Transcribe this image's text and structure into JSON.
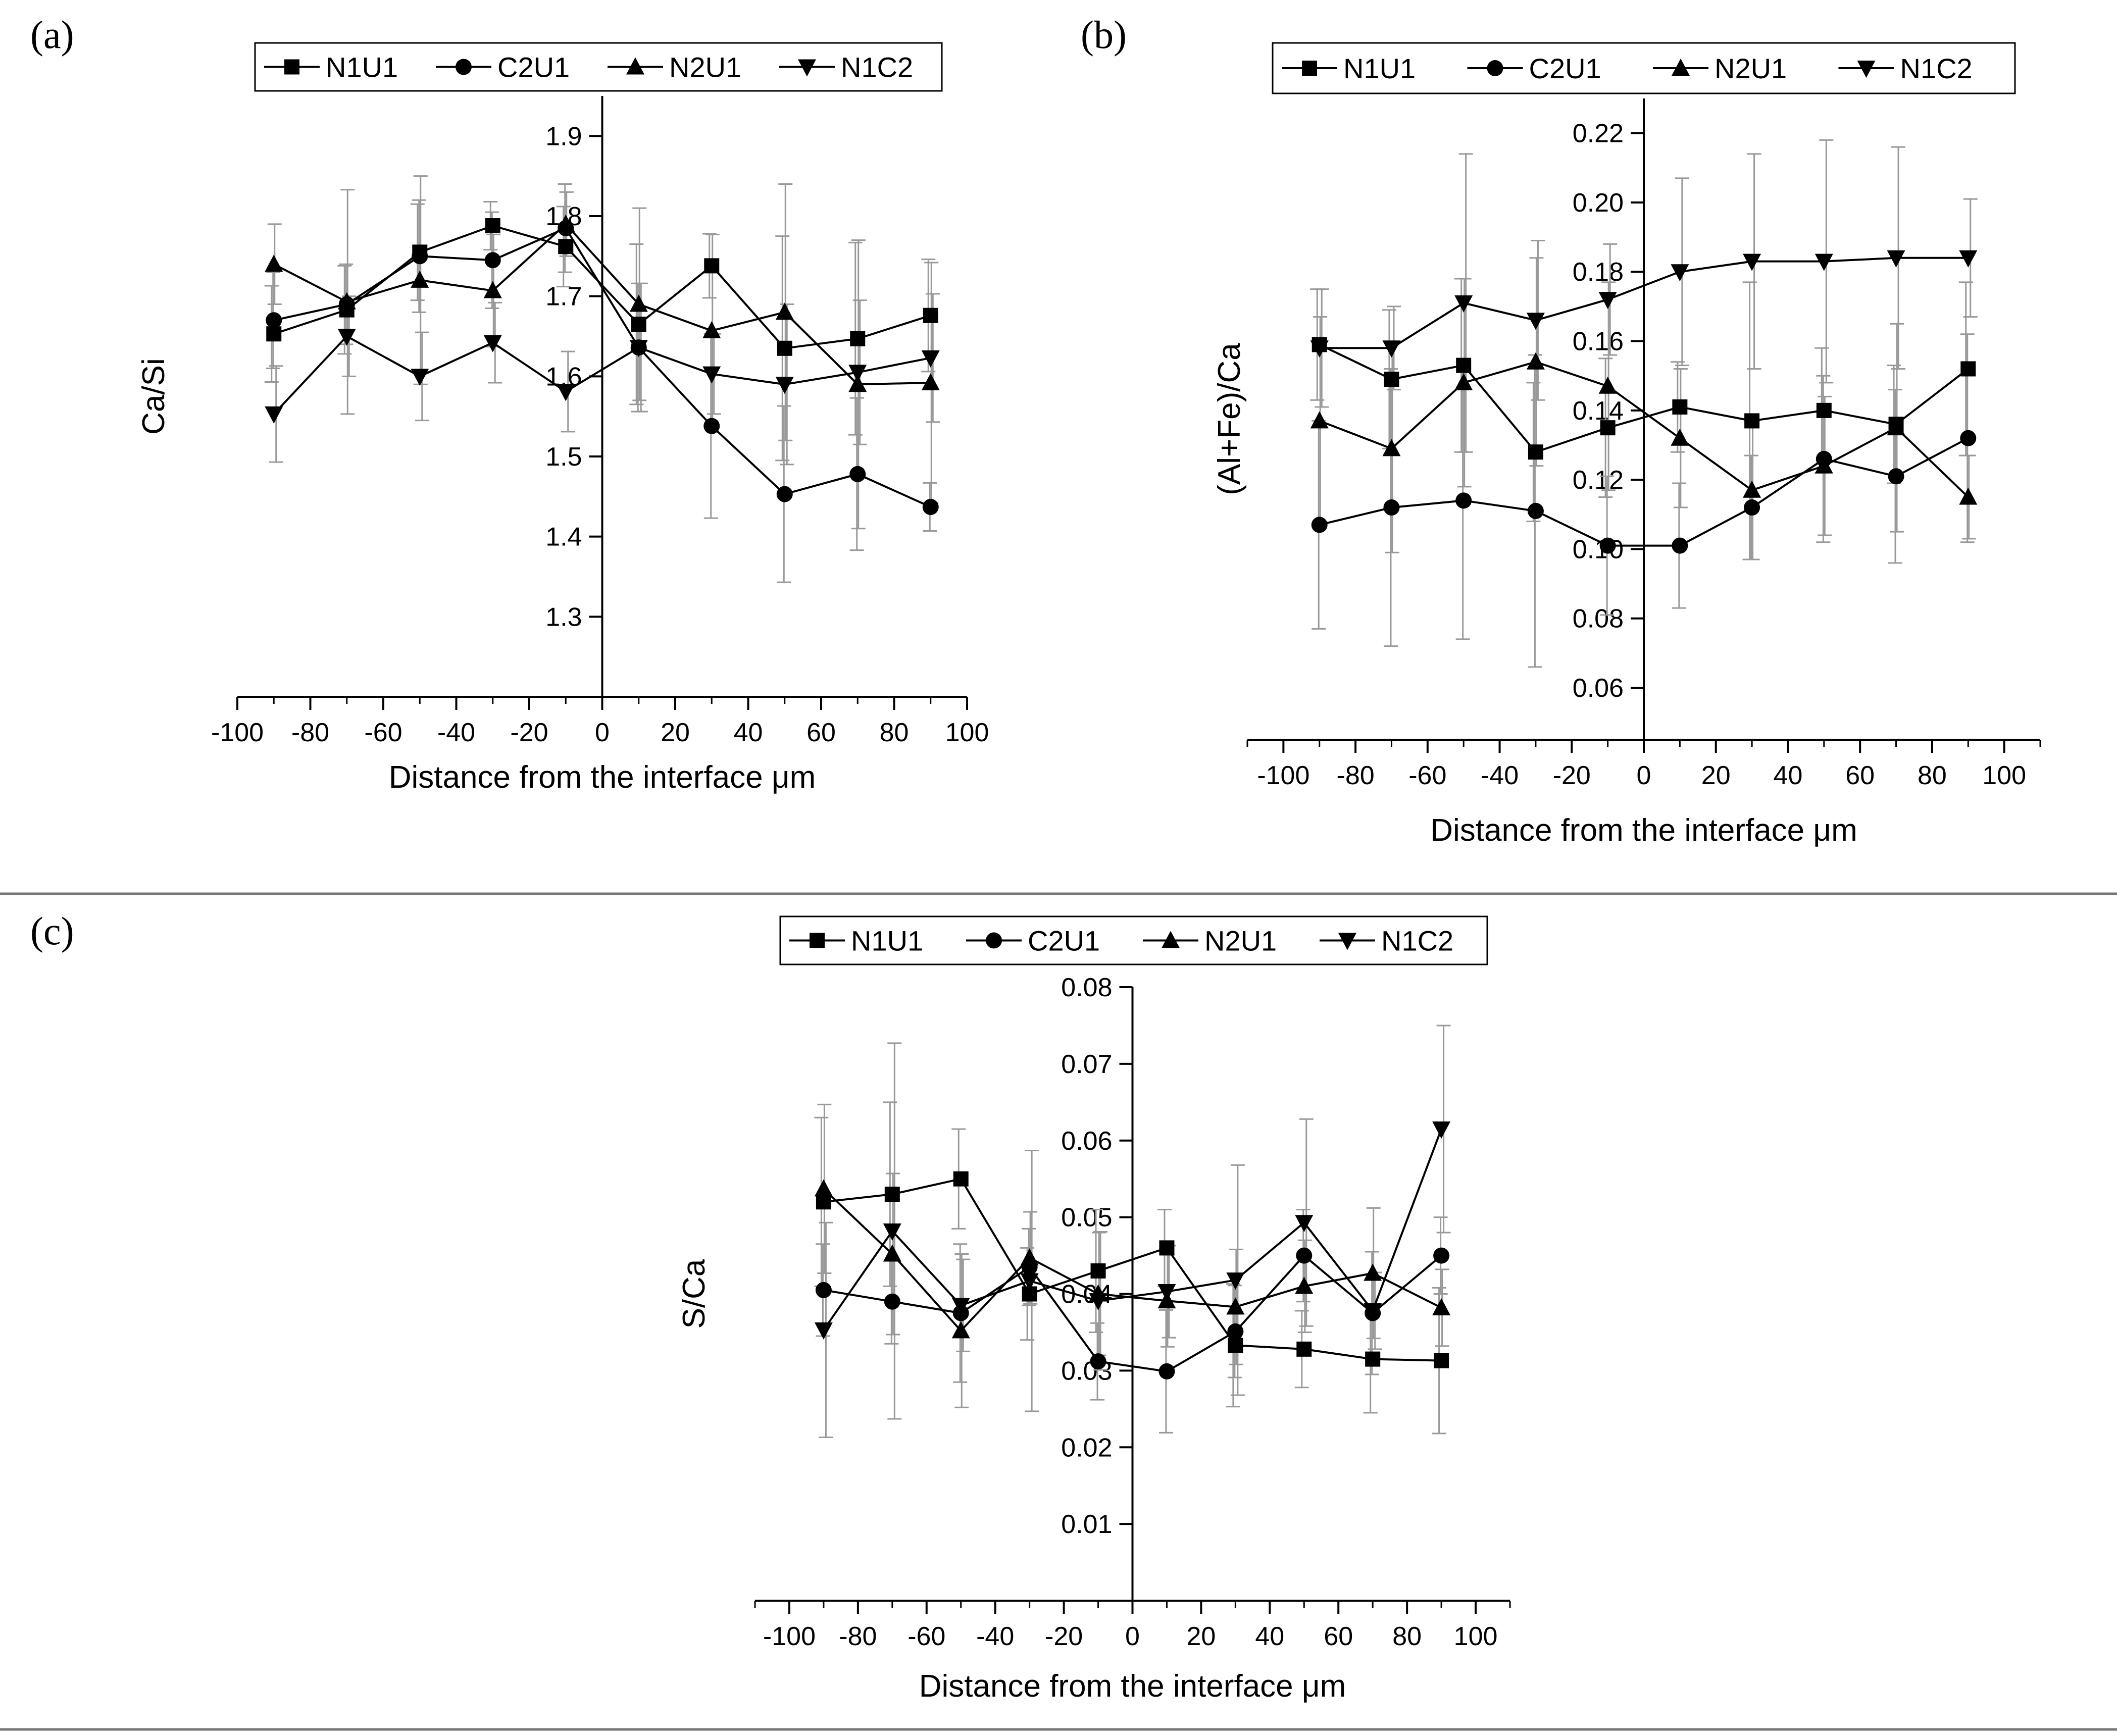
{
  "figure": {
    "separators": 2
  },
  "chart_data": [
    {
      "type": "line",
      "panel_label": "(a)",
      "title": "",
      "xlabel": "Distance from the interface μm",
      "ylabel": "Ca/Si",
      "xlim": [
        -100,
        100
      ],
      "ylim": [
        1.2,
        1.95
      ],
      "xticks": [
        -100,
        -80,
        -60,
        -40,
        -20,
        0,
        20,
        40,
        60,
        80,
        100
      ],
      "yticks": [
        1.3,
        1.4,
        1.5,
        1.6,
        1.7,
        1.8,
        1.9
      ],
      "legend_position": "top",
      "x": [
        -90,
        -70,
        -50,
        -30,
        -10,
        10,
        30,
        50,
        70,
        90
      ],
      "series": [
        {
          "name": "N1U1",
          "marker": "square",
          "values": [
            1.653,
            1.683,
            1.755,
            1.788,
            1.762,
            1.665,
            1.738,
            1.635,
            1.647,
            1.676
          ],
          "errors": [
            0.06,
            0.055,
            0.06,
            0.03,
            0.05,
            0.1,
            0.04,
            0.14,
            0.12,
            0.07
          ]
        },
        {
          "name": "C2U1",
          "marker": "circle",
          "values": [
            1.67,
            1.69,
            1.75,
            1.745,
            1.785,
            1.636,
            1.538,
            1.453,
            1.478,
            1.437
          ],
          "errors": [
            0.06,
            0.05,
            0.07,
            0.06,
            0.055,
            0.08,
            0.115,
            0.11,
            0.095,
            0.03
          ]
        },
        {
          "name": "N2U1",
          "marker": "triangle-up",
          "values": [
            1.74,
            1.693,
            1.72,
            1.707,
            1.79,
            1.69,
            1.657,
            1.68,
            1.59,
            1.592
          ],
          "errors": [
            0.05,
            0.14,
            0.13,
            0.07,
            0.04,
            0.12,
            0.12,
            0.16,
            0.18,
            0.15
          ]
        },
        {
          "name": "N1C2",
          "marker": "triangle-down",
          "values": [
            1.553,
            1.65,
            1.6,
            1.642,
            1.581,
            1.636,
            1.603,
            1.59,
            1.605,
            1.623
          ],
          "errors": [
            0.06,
            0.05,
            0.055,
            0.05,
            0.05,
            0.08,
            0.05,
            0.1,
            0.09,
            0.08
          ]
        }
      ]
    },
    {
      "type": "line",
      "panel_label": "(b)",
      "title": "",
      "xlabel": "Distance from the interface μm",
      "ylabel": "(Al+Fe)/Ca",
      "xlim": [
        -110,
        110
      ],
      "ylim": [
        0.045,
        0.23
      ],
      "xticks": [
        -100,
        -80,
        -60,
        -40,
        -20,
        0,
        20,
        40,
        60,
        80,
        100
      ],
      "yticks": [
        0.06,
        0.08,
        0.1,
        0.12,
        0.14,
        0.16,
        0.18,
        0.2,
        0.22
      ],
      "legend_position": "top",
      "x": [
        -90,
        -70,
        -50,
        -30,
        -10,
        10,
        30,
        50,
        70,
        90
      ],
      "series": [
        {
          "name": "N1U1",
          "marker": "square",
          "values": [
            0.159,
            0.149,
            0.153,
            0.128,
            0.135,
            0.141,
            0.137,
            0.14,
            0.136,
            0.152
          ],
          "errors": [
            0.016,
            0.02,
            0.025,
            0.02,
            0.02,
            0.013,
            0.04,
            0.018,
            0.017,
            0.025
          ]
        },
        {
          "name": "C2U1",
          "marker": "circle",
          "values": [
            0.107,
            0.112,
            0.114,
            0.111,
            0.101,
            0.101,
            0.112,
            0.126,
            0.121,
            0.132
          ],
          "errors": [
            0.03,
            0.04,
            0.04,
            0.045,
            0.02,
            0.018,
            0.015,
            0.024,
            0.025,
            0.03
          ]
        },
        {
          "name": "N2U1",
          "marker": "triangle-up",
          "values": [
            0.137,
            0.129,
            0.148,
            0.154,
            0.147,
            0.132,
            0.117,
            0.124,
            0.135,
            0.115
          ],
          "errors": [
            0.03,
            0.03,
            0.03,
            0.03,
            0.03,
            0.02,
            0.02,
            0.02,
            0.03,
            0.012
          ]
        },
        {
          "name": "N1C2",
          "marker": "triangle-down",
          "values": [
            0.158,
            0.158,
            0.171,
            0.166,
            0.172,
            0.18,
            0.183,
            0.183,
            0.184,
            0.184
          ],
          "errors": [
            0.017,
            0.012,
            0.043,
            0.023,
            0.016,
            0.027,
            0.031,
            0.035,
            0.032,
            0.017
          ]
        }
      ]
    },
    {
      "type": "line",
      "panel_label": "(c)",
      "title": "",
      "xlabel": "Distance from the interface μm",
      "ylabel": "S/Ca",
      "xlim": [
        -110,
        110
      ],
      "ylim": [
        0.0,
        0.08
      ],
      "xticks": [
        -100,
        -80,
        -60,
        -40,
        -20,
        0,
        20,
        40,
        60,
        80,
        100
      ],
      "yticks": [
        0.01,
        0.02,
        0.03,
        0.04,
        0.05,
        0.06,
        0.07,
        0.08
      ],
      "legend_position": "top",
      "x": [
        -90,
        -70,
        -50,
        -30,
        -10,
        10,
        30,
        50,
        70,
        90
      ],
      "series": [
        {
          "name": "N1U1",
          "marker": "square",
          "values": [
            0.052,
            0.053,
            0.055,
            0.04,
            0.043,
            0.046,
            0.0333,
            0.0328,
            0.0315,
            0.0313
          ],
          "errors": [
            0.011,
            0.012,
            0.0065,
            0.006,
            0.008,
            0.005,
            0.008,
            0.005,
            0.007,
            0.0095
          ]
        },
        {
          "name": "C2U1",
          "marker": "circle",
          "values": [
            0.0405,
            0.039,
            0.0375,
            0.0435,
            0.0312,
            0.0299,
            0.0351,
            0.045,
            0.0375,
            0.045
          ],
          "errors": [
            0.006,
            0.0055,
            0.009,
            0.005,
            0.005,
            0.008,
            0.006,
            0.006,
            0.008,
            0.005
          ]
        },
        {
          "name": "N2U1",
          "marker": "triangle-up",
          "values": [
            0.0537,
            0.0452,
            0.0352,
            0.0447,
            0.04,
            0.0391,
            0.0383,
            0.041,
            0.0427,
            0.0382
          ],
          "errors": [
            0.011,
            0.0105,
            0.01,
            0.006,
            0.008,
            0.006,
            0.0075,
            0.006,
            0.0085,
            0.005
          ]
        },
        {
          "name": "N1C2",
          "marker": "triangle-down",
          "values": [
            0.0353,
            0.0482,
            0.0385,
            0.0417,
            0.0391,
            0.0403,
            0.0418,
            0.0493,
            0.0378,
            0.0615
          ],
          "errors": [
            0.014,
            0.0245,
            0.006,
            0.017,
            0.009,
            0.006,
            0.015,
            0.0135,
            0.005,
            0.0135
          ]
        }
      ]
    }
  ]
}
